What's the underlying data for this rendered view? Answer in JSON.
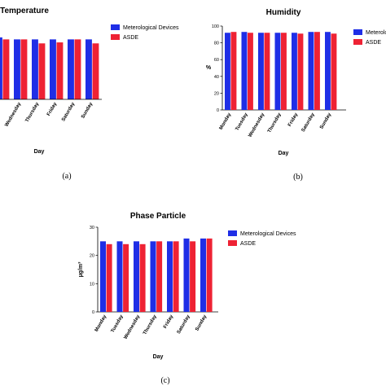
{
  "chart_data": [
    {
      "type": "bar",
      "title": "Temperature",
      "xlabel": "Day",
      "ylabel": "",
      "panel_label": "(a)",
      "categories": [
        "",
        "Wednesday",
        "Thursday",
        "Friday",
        "Saturday",
        "Sunday"
      ],
      "series": [
        {
          "name": "Meterological Devices",
          "values": [
            31,
            30,
            30,
            30,
            30,
            30
          ]
        },
        {
          "name": "ASDE",
          "values": [
            30,
            30,
            28,
            28.5,
            30,
            28
          ]
        }
      ],
      "ylim": [
        0,
        33
      ],
      "legend": "right"
    },
    {
      "type": "bar",
      "title": "Humidity",
      "xlabel": "Day",
      "ylabel": "%",
      "panel_label": "(b)",
      "categories": [
        "Monday",
        "Tuesday",
        "Wednesday",
        "Thursday",
        "Friday",
        "Saturday",
        "Sunday"
      ],
      "yticks": [
        "0",
        "20",
        "40",
        "60",
        "80",
        "100"
      ],
      "series": [
        {
          "name": "Meterological Devices",
          "values": [
            92,
            93,
            92,
            92,
            92,
            93,
            93
          ]
        },
        {
          "name": "ASDE",
          "values": [
            93,
            92,
            92,
            92,
            91,
            93,
            91
          ]
        }
      ],
      "ylim": [
        0,
        100
      ],
      "legend": "right"
    },
    {
      "type": "bar",
      "title": "Phase Particle",
      "xlabel": "Day",
      "ylabel": "µg/m³",
      "panel_label": "(c)",
      "categories": [
        "Monday",
        "Tuesday",
        "Wednesday",
        "Thursday",
        "Friday",
        "Saturday",
        "Sunday"
      ],
      "yticks": [
        "0",
        "10",
        "20",
        "30"
      ],
      "series": [
        {
          "name": "Meterological Devices",
          "values": [
            25,
            25,
            25,
            25,
            25,
            26,
            26
          ]
        },
        {
          "name": "ASDE",
          "values": [
            24,
            24,
            24,
            25,
            25,
            25,
            26
          ]
        }
      ],
      "ylim": [
        0,
        30
      ],
      "legend": "right"
    }
  ],
  "colors": {
    "series1": "#1f2ee6",
    "series2": "#ee2234"
  }
}
